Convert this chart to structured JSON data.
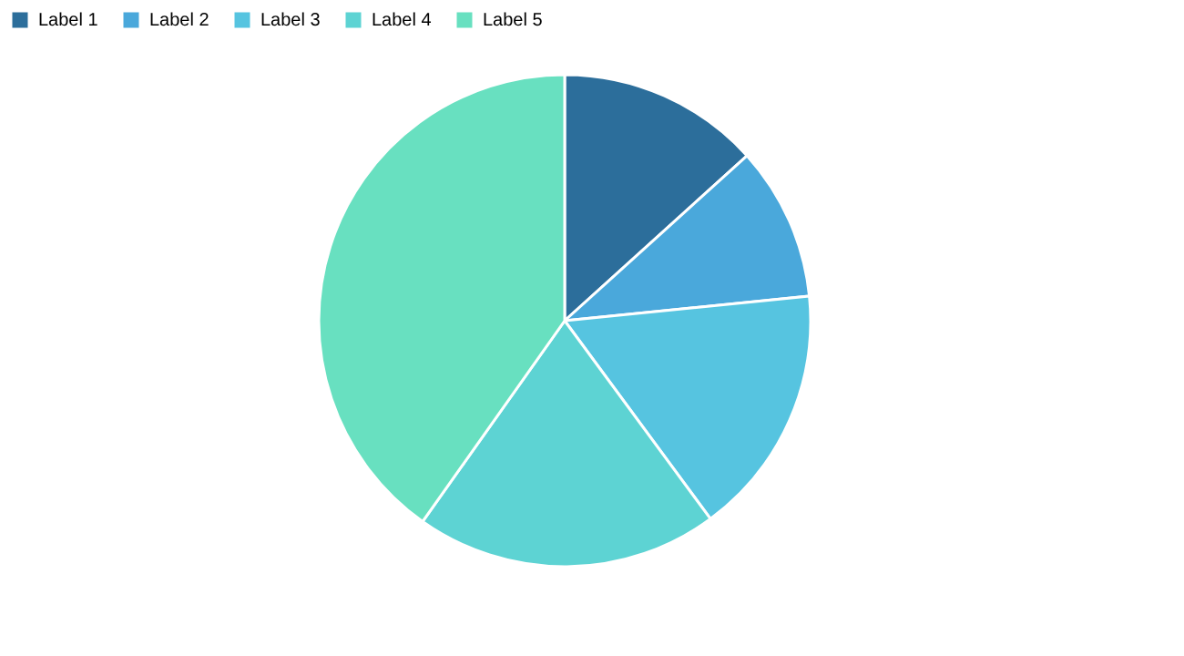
{
  "chart_data": {
    "type": "pie",
    "categories": [
      "Label 1",
      "Label 2",
      "Label 3",
      "Label 4",
      "Label 5"
    ],
    "values": [
      13.3,
      10.1,
      16.5,
      19.9,
      40.2
    ],
    "colors": [
      "#2c6e9b",
      "#4aa8db",
      "#56c4e0",
      "#5dd3d3",
      "#68e0c0"
    ],
    "legend": "top"
  }
}
